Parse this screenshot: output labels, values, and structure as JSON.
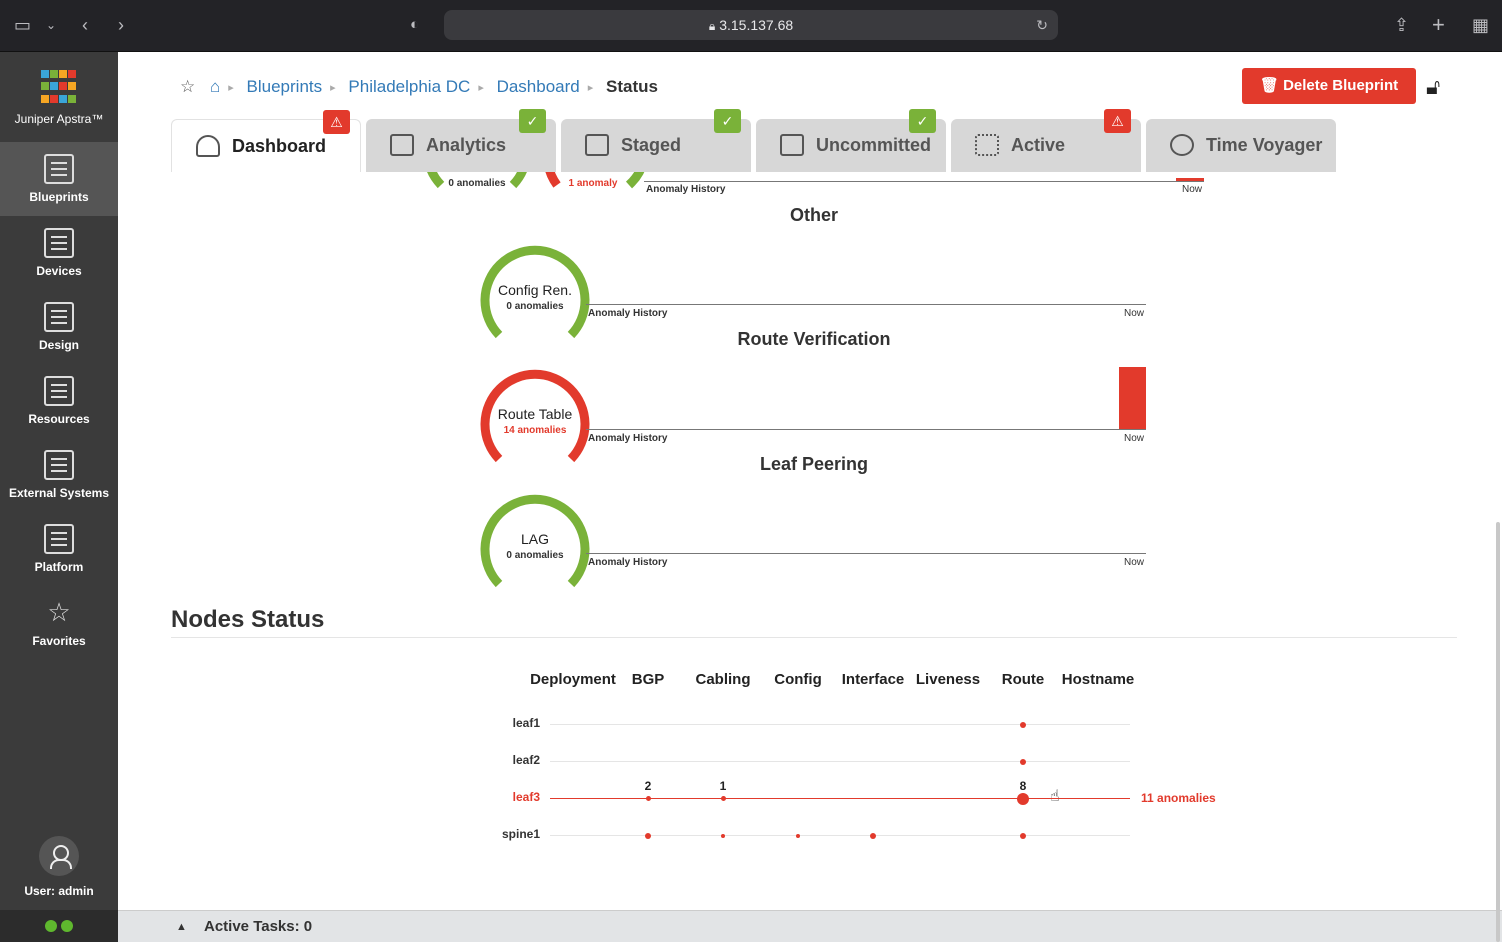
{
  "browser": {
    "url": "3.15.137.68",
    "icons": [
      "sidebar-toggle-icon",
      "chevron-down-icon",
      "back-icon",
      "forward-icon",
      "shield-icon",
      "lock-icon",
      "reload-icon",
      "share-icon",
      "new-tab-icon",
      "tab-overview-icon"
    ]
  },
  "sidebar": {
    "brand": "Juniper Apstra™",
    "items": [
      {
        "label": "Blueprints",
        "icon": "blueprints-icon",
        "active": true
      },
      {
        "label": "Devices",
        "icon": "devices-icon"
      },
      {
        "label": "Design",
        "icon": "design-icon"
      },
      {
        "label": "Resources",
        "icon": "resources-icon"
      },
      {
        "label": "External Systems",
        "icon": "external-systems-icon"
      },
      {
        "label": "Platform",
        "icon": "platform-icon"
      },
      {
        "label": "Favorites",
        "icon": "star-icon"
      }
    ],
    "user": "User: admin"
  },
  "breadcrumb": {
    "items": [
      "Blueprints",
      "Philadelphia DC",
      "Dashboard"
    ],
    "current": "Status"
  },
  "actions": {
    "delete_label": "Delete Blueprint"
  },
  "tabs": [
    {
      "label": "Dashboard",
      "badge": "warning",
      "active": true
    },
    {
      "label": "Analytics",
      "badge": "ok"
    },
    {
      "label": "Staged",
      "badge": "ok"
    },
    {
      "label": "Uncommitted",
      "badge": "ok"
    },
    {
      "label": "Active",
      "badge": "warning"
    },
    {
      "label": "Time Voyager",
      "badge": ""
    }
  ],
  "partial_row": {
    "gauge1_count": "0 anomalies",
    "gauge2_count": "1 anomaly",
    "history_label": "Anomaly History",
    "now_label": "Now"
  },
  "sections": [
    {
      "title": "Other",
      "gauge_name": "Config Ren.",
      "count": "0 anomalies",
      "status": "ok",
      "history_label": "Anomaly History",
      "now_label": "Now"
    },
    {
      "title": "Route Verification",
      "gauge_name": "Route Table",
      "count": "14 anomalies",
      "status": "error",
      "history_label": "Anomaly History",
      "now_label": "Now"
    },
    {
      "title": "Leaf Peering",
      "gauge_name": "LAG",
      "count": "0 anomalies",
      "status": "ok",
      "history_label": "Anomaly History",
      "now_label": "Now"
    }
  ],
  "nodes_status": {
    "title": "Nodes Status",
    "columns": [
      "Deployment",
      "BGP",
      "Cabling",
      "Config",
      "Interface",
      "Liveness",
      "Route",
      "Hostname"
    ],
    "rows": [
      {
        "name": "leaf1",
        "counts": [
          null,
          null,
          null,
          null,
          null,
          null,
          1,
          null
        ]
      },
      {
        "name": "leaf2",
        "counts": [
          null,
          null,
          null,
          null,
          null,
          null,
          1,
          null
        ]
      },
      {
        "name": "leaf3",
        "highlight": true,
        "counts": [
          null,
          2,
          1,
          null,
          null,
          null,
          8,
          null
        ],
        "labels": [
          "",
          "2",
          "1",
          "",
          "",
          "",
          "8",
          ""
        ],
        "summary": "11 anomalies"
      },
      {
        "name": "spine1",
        "counts": [
          null,
          1,
          1,
          1,
          1,
          null,
          1,
          null
        ]
      }
    ]
  },
  "footer": {
    "tasks": "Active Tasks: 0"
  },
  "colors": {
    "ok": "#7ab239",
    "error": "#e23a2c",
    "link": "#337ab7",
    "sidebar": "#3b3b3b"
  }
}
